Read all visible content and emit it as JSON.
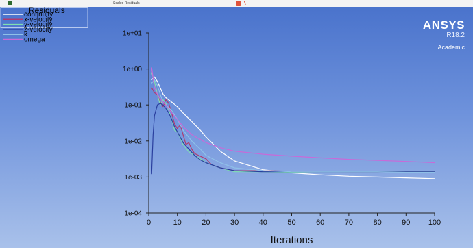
{
  "window": {
    "title": "Scaled Residuals"
  },
  "brand": {
    "name": "ANSYS",
    "version": "R18.2",
    "edition": "Academic"
  },
  "legend": {
    "title": "Residuals"
  },
  "chart_data": {
    "type": "line",
    "title": "",
    "xlabel": "Iterations",
    "ylabel": "",
    "xscale": "linear",
    "yscale": "log",
    "xlim": [
      0,
      100
    ],
    "ylim": [
      0.0001,
      10
    ],
    "xticks": [
      0,
      10,
      20,
      30,
      40,
      50,
      60,
      70,
      80,
      90,
      100
    ],
    "yticks": [
      "1e-04",
      "1e-03",
      "1e-02",
      "1e-01",
      "1e+00",
      "1e+01"
    ],
    "grid": false,
    "legend_position": "top-left",
    "series": [
      {
        "name": "continuity",
        "color": "#ffffff",
        "x": [
          1,
          2,
          3,
          4,
          5,
          6,
          8,
          10,
          12,
          15,
          18,
          20,
          25,
          30,
          40,
          50,
          60,
          70,
          80,
          90,
          100
        ],
        "y": [
          0.5,
          0.6,
          0.45,
          0.3,
          0.2,
          0.16,
          0.12,
          0.09,
          0.06,
          0.035,
          0.02,
          0.013,
          0.0052,
          0.0028,
          0.0016,
          0.0013,
          0.00115,
          0.00105,
          0.001,
          0.00095,
          0.0009
        ]
      },
      {
        "name": "x-velocity",
        "color": "#b03a6e",
        "x": [
          1,
          2,
          3,
          4,
          5,
          6,
          7,
          8,
          9,
          10,
          11,
          12,
          13,
          14,
          15,
          16,
          18,
          20,
          22,
          25,
          30,
          40,
          50,
          60,
          70,
          80,
          90,
          100
        ],
        "y": [
          0.3,
          0.22,
          0.19,
          0.12,
          0.09,
          0.14,
          0.11,
          0.06,
          0.03,
          0.022,
          0.028,
          0.015,
          0.008,
          0.009,
          0.006,
          0.0045,
          0.0038,
          0.0032,
          0.0022,
          0.0018,
          0.0015,
          0.0015,
          0.00145,
          0.00145,
          0.0014,
          0.0014,
          0.0014,
          0.0014
        ]
      },
      {
        "name": "y-velocity",
        "color": "#7fe0b0",
        "x": [
          1,
          2,
          3,
          4,
          5,
          6,
          7,
          8,
          9,
          10,
          12,
          14,
          16,
          18,
          20,
          25,
          30,
          40,
          50,
          60,
          70,
          80,
          90,
          100
        ],
        "y": [
          0.8,
          0.45,
          0.2,
          0.1,
          0.14,
          0.11,
          0.07,
          0.04,
          0.02,
          0.018,
          0.008,
          0.005,
          0.004,
          0.0032,
          0.0025,
          0.0018,
          0.0014,
          0.0014,
          0.00135,
          0.0014,
          0.0014,
          0.0014,
          0.0014,
          0.0014
        ]
      },
      {
        "name": "z-velocity",
        "color": "#2a3f9e",
        "x": [
          1,
          1.5,
          2,
          3,
          4,
          5,
          6,
          7,
          8,
          9,
          10,
          12,
          14,
          16,
          18,
          20,
          25,
          30,
          40,
          50,
          60,
          70,
          80,
          90,
          100
        ],
        "y": [
          0.0012,
          0.015,
          0.05,
          0.1,
          0.11,
          0.1,
          0.08,
          0.06,
          0.04,
          0.025,
          0.018,
          0.009,
          0.006,
          0.004,
          0.003,
          0.0025,
          0.0018,
          0.0015,
          0.0014,
          0.0014,
          0.0014,
          0.0014,
          0.0014,
          0.0014,
          0.0014
        ]
      },
      {
        "name": "k",
        "color": "#8fc0e8",
        "x": [
          1,
          2,
          3,
          4,
          5,
          6,
          8,
          10,
          12,
          15,
          18,
          20,
          25,
          30,
          40,
          50,
          60,
          70,
          80,
          90,
          100
        ],
        "y": [
          0.4,
          0.5,
          0.35,
          0.2,
          0.12,
          0.1,
          0.07,
          0.04,
          0.02,
          0.01,
          0.006,
          0.004,
          0.0025,
          0.0018,
          0.0015,
          0.0014,
          0.0014,
          0.0014,
          0.0014,
          0.00135,
          0.00135
        ]
      },
      {
        "name": "omega",
        "color": "#c86ad8",
        "x": [
          1,
          2,
          3,
          4,
          5,
          6,
          8,
          10,
          12,
          15,
          20,
          25,
          30,
          40,
          50,
          60,
          70,
          80,
          90,
          100
        ],
        "y": [
          1.1,
          0.3,
          0.2,
          0.15,
          0.12,
          0.1,
          0.06,
          0.04,
          0.025,
          0.015,
          0.009,
          0.0065,
          0.0052,
          0.0043,
          0.0038,
          0.0034,
          0.0031,
          0.0029,
          0.0027,
          0.0025
        ]
      }
    ]
  }
}
